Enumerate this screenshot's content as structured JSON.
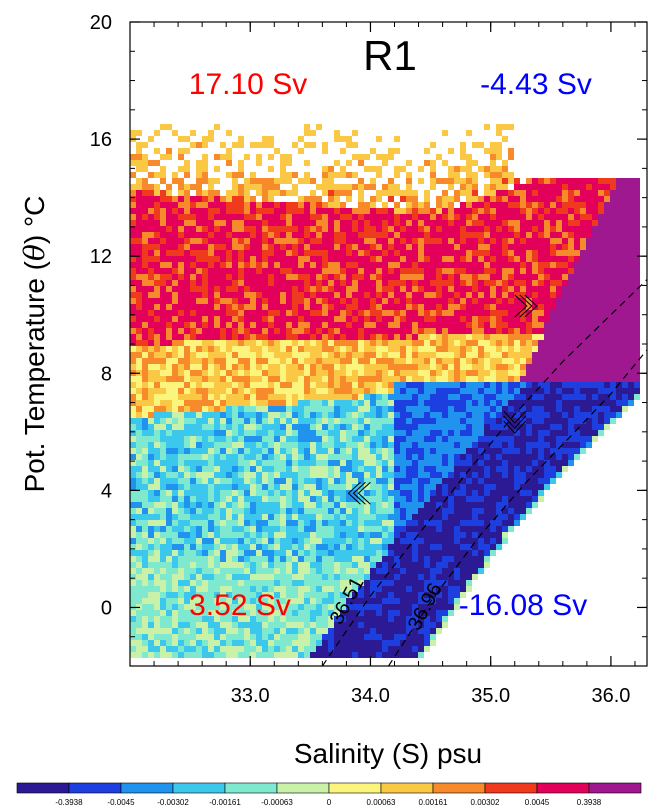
{
  "chart_data": {
    "type": "heatmap",
    "title": "R1",
    "xlabel": "Salinity (S) psu",
    "ylabel": "Pot. Temperature (θ) °C",
    "ylabel_parts": {
      "pre": "Pot. Temperature (",
      "symbol": "θ",
      "post": ") °C"
    },
    "xlim": [
      32.0,
      36.3
    ],
    "ylim": [
      -2.0,
      20.0
    ],
    "xticks": [
      {
        "value": 33.0,
        "label": "33.0"
      },
      {
        "value": 34.0,
        "label": "34.0"
      },
      {
        "value": 35.0,
        "label": "35.0"
      },
      {
        "value": 36.0,
        "label": "36.0"
      }
    ],
    "yticks": [
      {
        "value": 0,
        "label": "0"
      },
      {
        "value": 4,
        "label": "4"
      },
      {
        "value": 8,
        "label": "8"
      },
      {
        "value": 12,
        "label": "12"
      },
      {
        "value": 16,
        "label": "16"
      },
      {
        "value": 20,
        "label": "20"
      }
    ],
    "quadrant_transports": [
      {
        "label": "17.10 Sv",
        "value": 17.1,
        "position": "top-left",
        "color": "#ff0000"
      },
      {
        "label": "-4.43 Sv",
        "value": -4.43,
        "position": "top-right",
        "color": "#0000ff"
      },
      {
        "label": "3.52 Sv",
        "value": 3.52,
        "position": "bottom-left",
        "color": "#ff0000"
      },
      {
        "label": "-16.08 Sv",
        "value": -16.08,
        "position": "bottom-right",
        "color": "#0000ff"
      }
    ],
    "density_contours": [
      {
        "label": "36.51",
        "points": [
          [
            33.6,
            -2.0
          ],
          [
            34.0,
            0.4
          ],
          [
            34.4,
            2.5
          ],
          [
            34.8,
            4.6
          ],
          [
            35.2,
            6.6
          ],
          [
            35.6,
            8.4
          ],
          [
            36.0,
            10.0
          ],
          [
            36.3,
            11.2
          ]
        ]
      },
      {
        "label": "36.96",
        "points": [
          [
            34.15,
            -2.0
          ],
          [
            34.5,
            0.2
          ],
          [
            34.9,
            2.4
          ],
          [
            35.3,
            4.3
          ],
          [
            35.7,
            6.0
          ],
          [
            36.0,
            7.3
          ],
          [
            36.3,
            8.8
          ]
        ]
      }
    ],
    "flow_arrows": [
      {
        "direction": "right",
        "x": 35.3,
        "y": 10.3
      },
      {
        "direction": "left",
        "x": 33.9,
        "y": 3.9
      },
      {
        "direction": "down",
        "x": 35.2,
        "y": 6.3
      }
    ],
    "colorbar": {
      "position": "bottom",
      "labels": [
        "-0.3938",
        "-0.0045",
        "-0.00302",
        "-0.00161",
        "-0.00063",
        "0",
        "0.00063",
        "0.00161",
        "0.00302",
        "0.0045",
        "0.3938"
      ],
      "colors": [
        "#2b1a94",
        "#1d3fe0",
        "#1f93ee",
        "#3cc8ec",
        "#7fe9d0",
        "#c9f2a8",
        "#fbf57e",
        "#fbc846",
        "#f78a2a",
        "#f03a1e",
        "#e2005a",
        "#a01890"
      ]
    }
  }
}
